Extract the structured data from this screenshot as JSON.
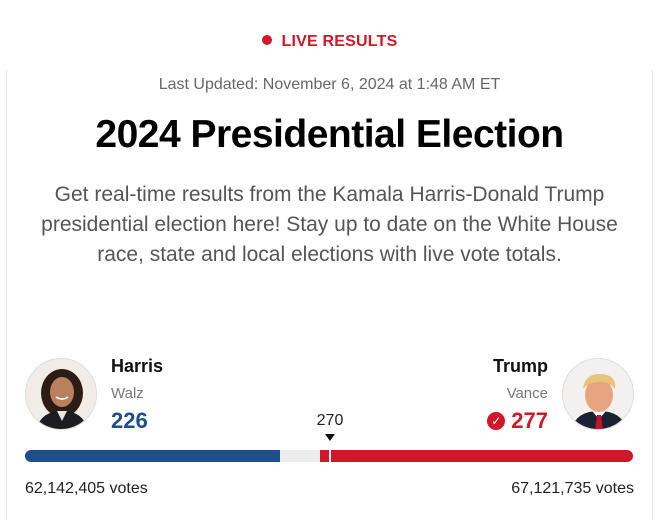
{
  "header": {
    "live_label": "LIVE RESULTS",
    "last_updated": "Last Updated: November 6, 2024 at 1:48 AM ET",
    "title": "2024 Presidential Election",
    "description": "Get real-time results from the Kamala Harris-Donald Trump presidential election here! Stay up to date on the White House race, state and local elections with live vote totals."
  },
  "results": {
    "total_electoral_votes": 538,
    "threshold_label": "270",
    "threshold_value": 270,
    "candidates": [
      {
        "name": "Harris",
        "running_mate": "Walz",
        "electoral_votes": 226,
        "electoral_votes_label": "226",
        "popular_votes": "62,142,405 votes",
        "color": "#1f4e8c",
        "winner": false
      },
      {
        "name": "Trump",
        "running_mate": "Vance",
        "electoral_votes": 277,
        "electoral_votes_label": "277",
        "popular_votes": "67,121,735 votes",
        "color": "#d0182a",
        "winner": true
      }
    ]
  },
  "colors": {
    "accent_red": "#d0182a",
    "accent_blue": "#1f4e8c"
  },
  "icons": {
    "live": "live-dot-icon",
    "winner": "checkmark-icon",
    "threshold": "triangle-down-icon"
  }
}
